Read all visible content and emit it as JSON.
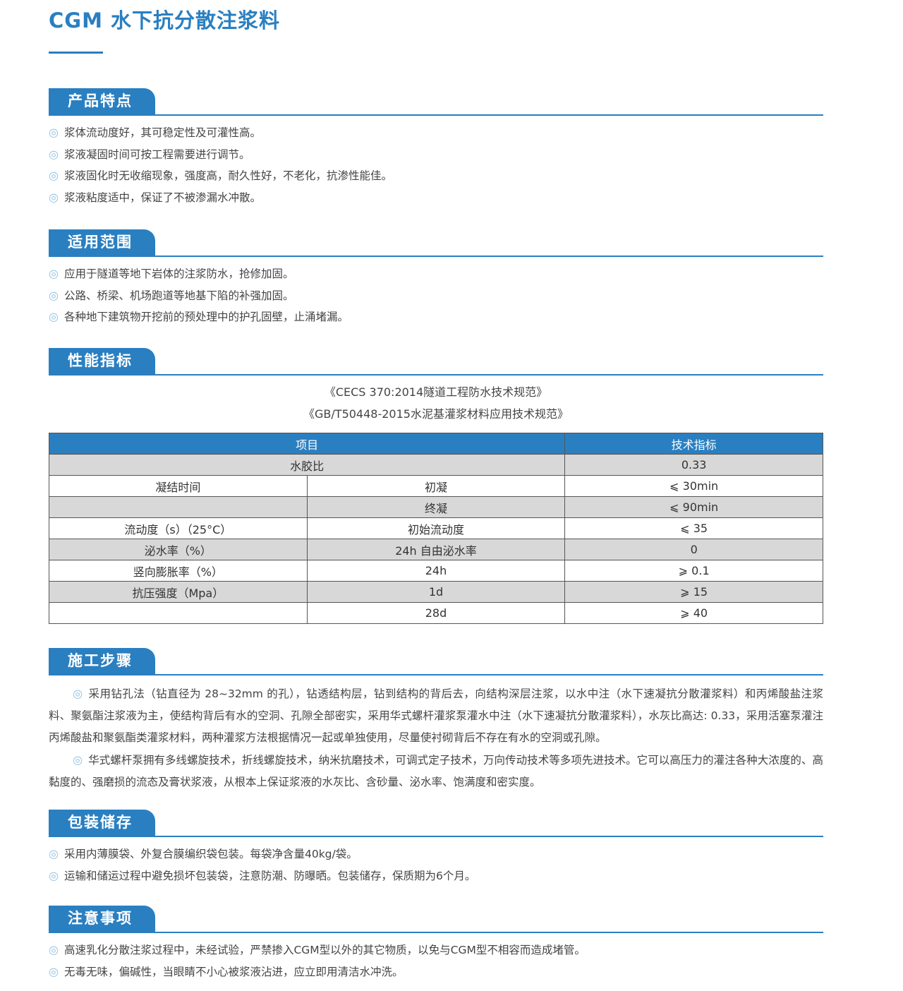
{
  "title": "CGM 水下抗分散注浆料",
  "sections": {
    "features": {
      "heading": "产品特点",
      "items": [
        "浆体流动度好，其可稳定性及可灌性高。",
        "浆液凝固时间可按工程需要进行调节。",
        "浆液固化时无收缩现象，强度高，耐久性好，不老化，抗渗性能佳。",
        "浆液粘度适中，保证了不被渗漏水冲散。"
      ]
    },
    "scope": {
      "heading": "适用范围",
      "items": [
        "应用于隧道等地下岩体的注浆防水，抢修加固。",
        "公路、桥梁、机场跑道等地基下陷的补强加固。",
        "各种地下建筑物开挖前的预处理中的护孔固壁，止涌堵漏。"
      ]
    },
    "performance": {
      "heading": "性能指标",
      "standards": [
        "《CECS 370:2014隧道工程防水技术规范》",
        "《GB/T50448-2015水泥基灌浆材料应用技术规范》"
      ],
      "table": {
        "headers": [
          "项目",
          "技术指标"
        ],
        "rows": [
          {
            "item": "水胶比",
            "sub": "",
            "value": "0.33"
          },
          {
            "item": "凝结时间",
            "sub": "初凝",
            "value": "⩽ 30min"
          },
          {
            "item": "",
            "sub": "终凝",
            "value": "⩽ 90min"
          },
          {
            "item": "流动度（s）（25°C）",
            "sub": "初始流动度",
            "value": "⩽ 35"
          },
          {
            "item": "泌水率（%）",
            "sub": "24h 自由泌水率",
            "value": "0"
          },
          {
            "item": "竖向膨胀率（%）",
            "sub": "24h",
            "value": "⩾ 0.1"
          },
          {
            "item": "抗压强度（Mpa）",
            "sub": "1d",
            "value": "⩾ 15"
          },
          {
            "item": "",
            "sub": "28d",
            "value": "⩾ 40"
          }
        ]
      }
    },
    "steps": {
      "heading": "施工步骤",
      "paragraphs": [
        "采用钻孔法（钻直径为 28~32mm 的孔），钻透结构层，钻到结构的背后去，向结构深层注浆，以水中注（水下速凝抗分散灌浆料）和丙烯酸盐注浆料、聚氨酯注浆液为主，使结构背后有水的空洞、孔隙全部密实，采用华式螺杆灌浆泵灌水中注（水下速凝抗分散灌浆料），水灰比高达: 0.33，采用活塞泵灌注丙烯酸盐和聚氨酯类灌浆材料，两种灌浆方法根据情况一起或单独使用，尽量使衬砌背后不存在有水的空洞或孔隙。",
        "华式螺杆泵拥有多线螺旋技术，折线螺旋技术，纳米抗磨技术，可调式定子技术，万向传动技术等多项先进技术。它可以高压力的灌注各种大浓度的、高黏度的、强磨损的流态及膏状浆液，从根本上保证浆液的水灰比、含砂量、泌水率、饱满度和密实度。"
      ]
    },
    "packaging": {
      "heading": "包装储存",
      "items": [
        "采用内薄膜袋、外复合膜编织袋包装。每袋净含量40kg/袋。",
        "运输和储运过程中避免损坏包装袋，注意防潮、防曝晒。包装储存，保质期为6个月。"
      ]
    },
    "notes": {
      "heading": "注意事项",
      "items": [
        "高速乳化分散注浆过程中，未经试验，严禁掺入CGM型以外的其它物质，以免与CGM型不相容而造成堵管。",
        "无毒无味，偏碱性，当眼睛不小心被浆液沾进，应立即用清洁水冲洗。"
      ]
    }
  },
  "bullet": "◎",
  "colors": {
    "accent": "#2a7fc1",
    "row_grey": "#d8d8d8"
  }
}
